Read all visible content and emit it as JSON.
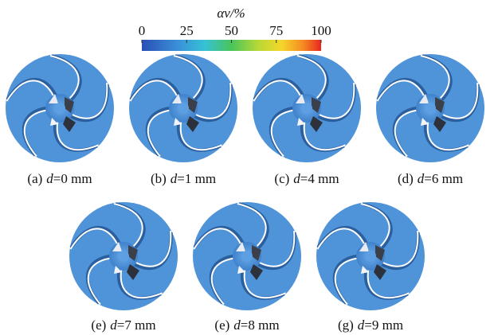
{
  "colorbar": {
    "title": "αv/%",
    "ticks": [
      0,
      25,
      50,
      75,
      100
    ]
  },
  "panels": [
    {
      "label": "(a)",
      "var": "d",
      "rest": "=0 mm"
    },
    {
      "label": "(b)",
      "var": "d",
      "rest": "=1 mm"
    },
    {
      "label": "(c)",
      "var": "d",
      "rest": "=4 mm"
    },
    {
      "label": "(d)",
      "var": "d",
      "rest": "=6 mm"
    },
    {
      "label": "(e)",
      "var": "d",
      "rest": "=7 mm"
    },
    {
      "label": "(e)",
      "var": "d",
      "rest": "=8 mm"
    },
    {
      "label": "(g)",
      "var": "d",
      "rest": "=9 mm"
    }
  ]
}
